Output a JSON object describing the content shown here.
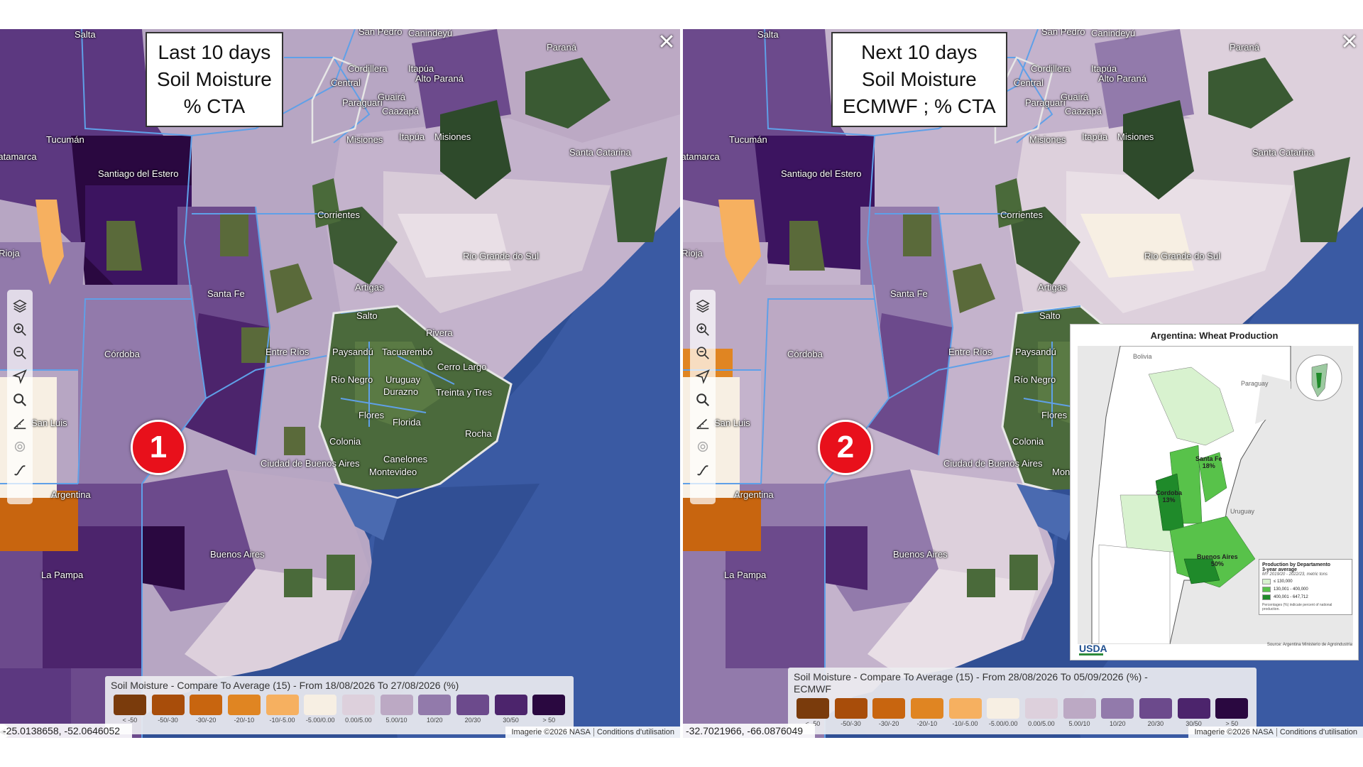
{
  "panels": [
    {
      "title_lines": [
        "Last 10 days",
        "Soil Moisture",
        "% CTA"
      ],
      "badge": "1",
      "legend_title_line1": "Soil Moisture - Compare To Average (15) - From 18/08/2026 To 27/08/2026 (%)",
      "legend_title_line2": "",
      "coords": "-25.0138658, -52.0646052",
      "attribution": "Imagerie ©2026 NASA",
      "conditions": "Conditions d'utilisation"
    },
    {
      "title_lines": [
        "Next 10 days",
        "Soil Moisture",
        "ECMWF ; % CTA"
      ],
      "badge": "2",
      "legend_title_line1": "Soil Moisture - Compare To Average (15) - From 28/08/2026 To 05/09/2026 (%) -",
      "legend_title_line2": "ECMWF",
      "coords": "-32.7021966, -66.0876049",
      "attribution": "Imagerie ©2026 NASA",
      "conditions": "Conditions d'utilisation"
    }
  ],
  "close_icon": "close-icon",
  "toolbar_icons": [
    "layers-icon",
    "zoom-in-icon",
    "zoom-out-icon",
    "locate-icon",
    "search-icon",
    "measure-icon",
    "target-icon",
    "draw-icon"
  ],
  "legend_classes": [
    {
      "label": "< -50",
      "color": "#7a3b0c"
    },
    {
      "label": "-50/-30",
      "color": "#a84d0a"
    },
    {
      "label": "-30/-20",
      "color": "#c8650f"
    },
    {
      "label": "-20/-10",
      "color": "#e08522"
    },
    {
      "label": "-10/-5.00",
      "color": "#f6b060"
    },
    {
      "label": "-5.00/0.00",
      "color": "#f7efe3"
    },
    {
      "label": "0.00/5.00",
      "color": "#ddd0dc"
    },
    {
      "label": "5.00/10",
      "color": "#bca9c4"
    },
    {
      "label": "10/20",
      "color": "#927aab"
    },
    {
      "label": "20/30",
      "color": "#6c4a8c"
    },
    {
      "label": "30/50",
      "color": "#4c246c"
    },
    {
      "label": "> 50",
      "color": "#2a0840"
    }
  ],
  "map_labels": [
    "Salta",
    "San Pedro",
    "Canindeyú",
    "Paraná",
    "Cordillera",
    "Itapúa",
    "Alto Paraná",
    "Guairá",
    "Central",
    "Paraguarí",
    "Caazapá",
    "Misiones",
    "Itapúa",
    "Misiones",
    "Tucumán",
    "Santa Catarina",
    "Catamarca",
    "Santiago del Estero",
    "Corrientes",
    "Rio Grande do Sul",
    "La Rioja",
    "Santa Fe",
    "Artigas",
    "Salto",
    "Rivera",
    "Córdoba",
    "Entre Ríos",
    "Paysandú",
    "Tacuarembó",
    "Río Negro",
    "Uruguay",
    "Cerro Largo",
    "Durazno",
    "Treinta y Tres",
    "San Luis",
    "Flores",
    "Florida",
    "Rocha",
    "Colonia",
    "Canelones",
    "Ciudad de Buenos Aires",
    "Montevideo",
    "Argentina",
    "Buenos Aires",
    "La Pampa"
  ],
  "inset": {
    "title": "Argentina: Wheat Production",
    "labels": {
      "bolivia": "Bolivia",
      "paraguay": "Paraguay",
      "uruguay": "Uruguay",
      "santa_fe": "Santa Fe",
      "santa_fe_pct": "18%",
      "cordoba": "Cordoba",
      "cordoba_pct": "13%",
      "buenos_aires": "Buenos Aires",
      "buenos_aires_pct": "50%"
    },
    "legend": {
      "title": "Production by Departamento",
      "subtitle": "3-year average",
      "years": "MY 2019/20 - 2022/23, metric tons",
      "classes": [
        {
          "label": "≤ 130,000",
          "color": "#d8f2cf"
        },
        {
          "label": "130,001 - 400,000",
          "color": "#58c24a"
        },
        {
          "label": "400,001 - 647,712",
          "color": "#1f8a2a"
        }
      ],
      "note": "Percentages (%) indicate percent of national production."
    },
    "logo": "USDA",
    "source": "Source: Argentina Ministerio de Agroindustria"
  }
}
